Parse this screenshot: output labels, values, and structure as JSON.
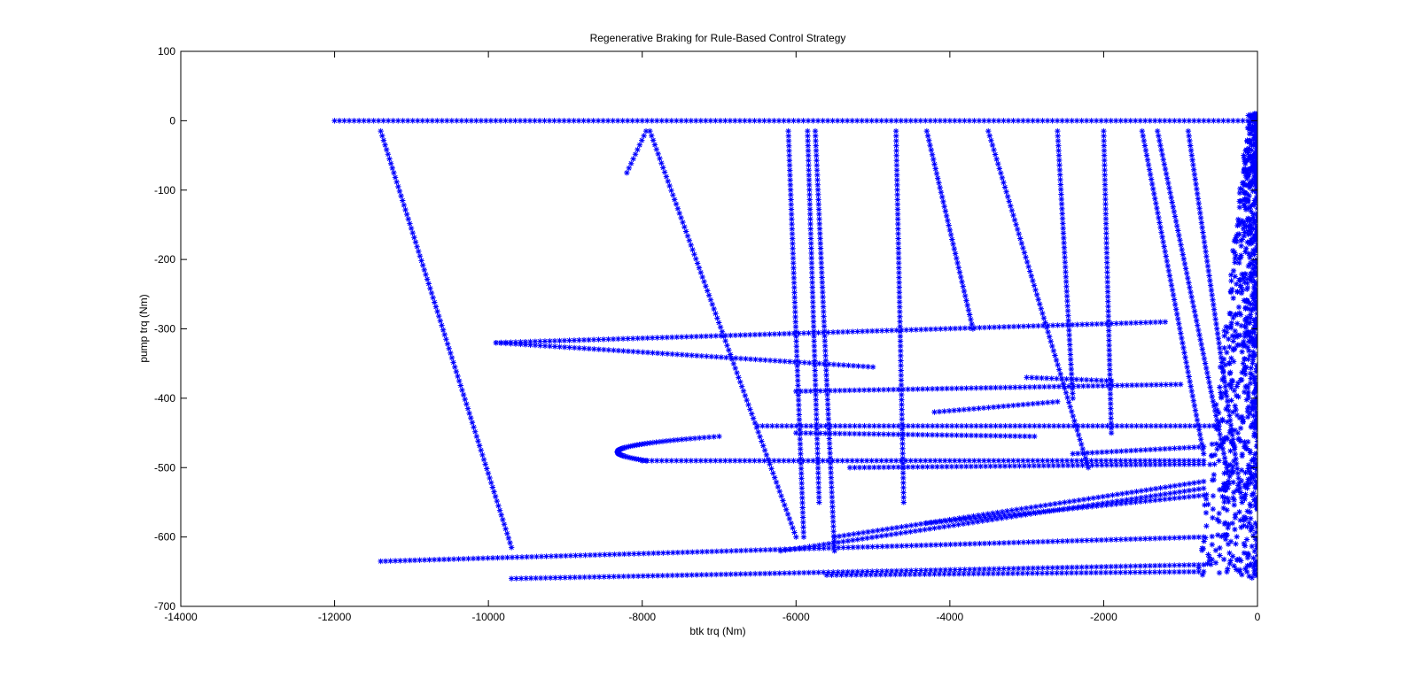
{
  "chart_data": {
    "type": "scatter",
    "title": "Regenerative Braking for Rule-Based Control Strategy",
    "xlabel": "btk trq (Nm)",
    "ylabel": "pump trq (Nm)",
    "xlim": [
      -14000,
      0
    ],
    "ylim": [
      -700,
      100
    ],
    "xticks": [
      -14000,
      -12000,
      -10000,
      -8000,
      -6000,
      -4000,
      -2000,
      0
    ],
    "yticks": [
      -700,
      -600,
      -500,
      -400,
      -300,
      -200,
      -100,
      0,
      100
    ],
    "xtick_labels": [
      "-14000",
      "-12000",
      "-10000",
      "-8000",
      "-6000",
      "-4000",
      "-2000",
      "0"
    ],
    "ytick_labels": [
      "-700",
      "-600",
      "-500",
      "-400",
      "-300",
      "-200",
      "-100",
      "0",
      "100"
    ],
    "grid": false,
    "legend": "none",
    "marker": "*",
    "color": "#0000ff",
    "series": [
      {
        "points_description": "data traces",
        "traces": [
          {
            "kind": "line",
            "from": [
              -12000,
              0
            ],
            "to": [
              0,
              0
            ]
          },
          {
            "kind": "line",
            "from": [
              -11400,
              -15
            ],
            "to": [
              -9700,
              -615
            ]
          },
          {
            "kind": "line",
            "from": [
              -7950,
              -15
            ],
            "to": [
              -8200,
              -75
            ]
          },
          {
            "kind": "line",
            "from": [
              -7900,
              -15
            ],
            "to": [
              -6000,
              -600
            ]
          },
          {
            "kind": "line",
            "from": [
              -6100,
              -15
            ],
            "to": [
              -5900,
              -600
            ]
          },
          {
            "kind": "line",
            "from": [
              -5850,
              -15
            ],
            "to": [
              -5700,
              -550
            ]
          },
          {
            "kind": "line",
            "from": [
              -5750,
              -15
            ],
            "to": [
              -5500,
              -620
            ]
          },
          {
            "kind": "line",
            "from": [
              -4700,
              -15
            ],
            "to": [
              -4600,
              -550
            ]
          },
          {
            "kind": "line",
            "from": [
              -4300,
              -15
            ],
            "to": [
              -3700,
              -300
            ]
          },
          {
            "kind": "line",
            "from": [
              -3500,
              -15
            ],
            "to": [
              -2200,
              -500
            ]
          },
          {
            "kind": "line",
            "from": [
              -2600,
              -15
            ],
            "to": [
              -2400,
              -400
            ]
          },
          {
            "kind": "line",
            "from": [
              -2000,
              -15
            ],
            "to": [
              -1900,
              -450
            ]
          },
          {
            "kind": "line",
            "from": [
              -1500,
              -15
            ],
            "to": [
              -700,
              -480
            ]
          },
          {
            "kind": "line",
            "from": [
              -1300,
              -15
            ],
            "to": [
              -400,
              -500
            ]
          },
          {
            "kind": "line",
            "from": [
              -900,
              -15
            ],
            "to": [
              -200,
              -550
            ]
          },
          {
            "kind": "line",
            "from": [
              -9900,
              -320
            ],
            "to": [
              -1200,
              -290
            ]
          },
          {
            "kind": "line",
            "from": [
              -9900,
              -320
            ],
            "to": [
              -5000,
              -355
            ]
          },
          {
            "kind": "line",
            "from": [
              -6000,
              -390
            ],
            "to": [
              -1000,
              -380
            ]
          },
          {
            "kind": "line",
            "from": [
              -3000,
              -370
            ],
            "to": [
              -1900,
              -375
            ]
          },
          {
            "kind": "line",
            "from": [
              -4200,
              -420
            ],
            "to": [
              -2600,
              -405
            ]
          },
          {
            "kind": "line",
            "from": [
              -6000,
              -450
            ],
            "to": [
              -2900,
              -455
            ]
          },
          {
            "kind": "line",
            "from": [
              -8000,
              -490
            ],
            "to": [
              -700,
              -490
            ]
          },
          {
            "kind": "line",
            "from": [
              -5300,
              -500
            ],
            "to": [
              -700,
              -495
            ]
          },
          {
            "kind": "line",
            "from": [
              -6500,
              -440
            ],
            "to": [
              -500,
              -440
            ]
          },
          {
            "kind": "line",
            "from": [
              -11400,
              -635
            ],
            "to": [
              -700,
              -600
            ]
          },
          {
            "kind": "line",
            "from": [
              -9700,
              -660
            ],
            "to": [
              -700,
              -640
            ]
          },
          {
            "kind": "line",
            "from": [
              -5600,
              -655
            ],
            "to": [
              -700,
              -650
            ]
          },
          {
            "kind": "arc",
            "from": [
              -7000,
              -455
            ],
            "vertex": [
              -8250,
              -472
            ],
            "to": [
              -7950,
              -490
            ]
          },
          {
            "kind": "line",
            "from": [
              -6200,
              -620
            ],
            "to": [
              -700,
              -530
            ]
          },
          {
            "kind": "line",
            "from": [
              -5500,
              -600
            ],
            "to": [
              -700,
              -520
            ]
          },
          {
            "kind": "line",
            "from": [
              -4300,
              -580
            ],
            "to": [
              -700,
              -540
            ]
          },
          {
            "kind": "line",
            "from": [
              -2400,
              -480
            ],
            "to": [
              -700,
              -470
            ]
          },
          {
            "kind": "cluster",
            "from": [
              -800,
              -660
            ],
            "to": [
              0,
              10
            ]
          }
        ]
      }
    ]
  }
}
